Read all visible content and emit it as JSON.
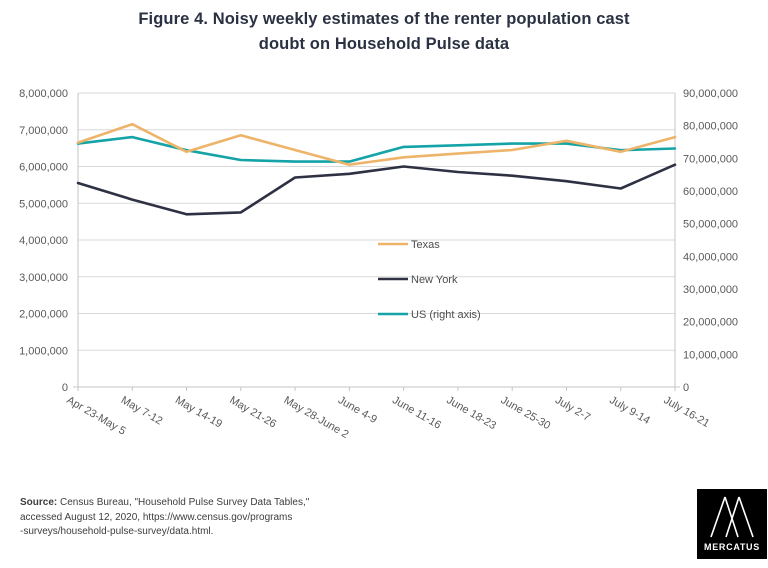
{
  "title": {
    "line1": "Figure 4. Noisy weekly estimates of the renter population cast",
    "line2": "doubt on Household Pulse data"
  },
  "chart_data": {
    "type": "line",
    "categories": [
      "Apr 23-May 5",
      "May 7-12",
      "May 14-19",
      "May 21-26",
      "May 28-June 2",
      "June 4-9",
      "June 11-16",
      "June 18-23",
      "June 25-30",
      "July 2-7",
      "July 9-14",
      "July 16-21"
    ],
    "series": [
      {
        "name": "Texas",
        "axis": "left",
        "color": "#EDB46A",
        "values": [
          6650000,
          7150000,
          6400000,
          6850000,
          6450000,
          6050000,
          6250000,
          6350000,
          6450000,
          6700000,
          6400000,
          6800000
        ]
      },
      {
        "name": "New York",
        "axis": "left",
        "color": "#2E3143",
        "values": [
          5550000,
          5100000,
          4700000,
          4750000,
          5700000,
          5800000,
          6000000,
          5850000,
          5750000,
          5600000,
          5400000,
          6050000
        ]
      },
      {
        "name": "US (right axis)",
        "axis": "right",
        "color": "#14A3A7",
        "values": [
          74500000,
          76500000,
          72500000,
          69500000,
          69000000,
          69000000,
          73500000,
          74000000,
          74500000,
          74500000,
          72500000,
          73000000
        ]
      }
    ],
    "left_axis": {
      "min": 0,
      "max": 8000000,
      "step": 1000000,
      "tick_labels": [
        "0",
        "1,000,000",
        "2,000,000",
        "3,000,000",
        "4,000,000",
        "5,000,000",
        "6,000,000",
        "7,000,000",
        "8,000,000"
      ]
    },
    "right_axis": {
      "min": 0,
      "max": 90000000,
      "step": 10000000,
      "tick_labels": [
        "0",
        "10,000,000",
        "20,000,000",
        "30,000,000",
        "40,000,000",
        "50,000,000",
        "60,000,000",
        "70,000,000",
        "80,000,000",
        "90,000,000"
      ]
    },
    "x_tick_rotation_deg": 30,
    "grid": true,
    "legend_position": "inside-center",
    "colors": {
      "grid": "#D9D9D9",
      "axis": "#C6C6C6",
      "axis_text": "#595959",
      "legend_text": "#4D4D4D"
    }
  },
  "source_note": {
    "label": "Source:",
    "line1_rest": " Census Bureau, \"Household Pulse Survey Data Tables,\"",
    "line2": "accessed August 12, 2020, https://www.census.gov/programs",
    "line3": "-surveys/household-pulse-survey/data.html."
  },
  "logo": {
    "wordmark": "MERCATUS"
  },
  "theme": {
    "title_color": "#2A3142",
    "background": "#FFFFFF"
  }
}
